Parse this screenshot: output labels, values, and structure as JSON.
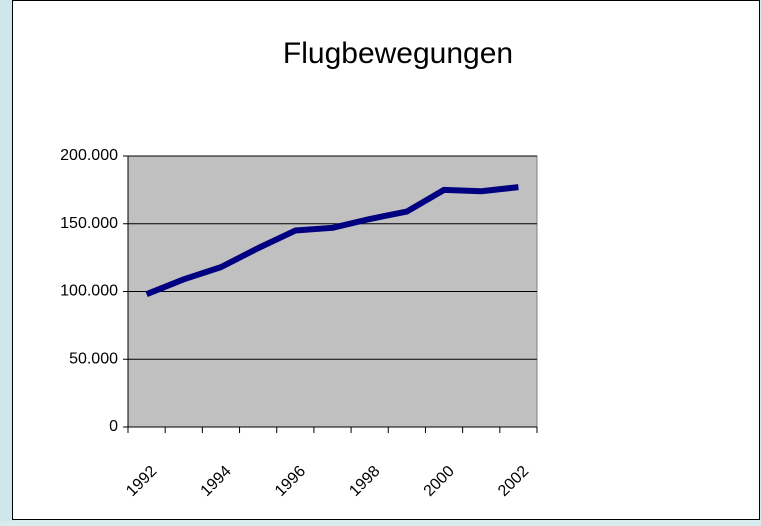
{
  "chart_data": {
    "type": "line",
    "title": "Flugbewegungen",
    "categories": [
      "1992",
      null,
      "1994",
      null,
      "1996",
      null,
      "1998",
      null,
      "2000",
      null,
      "2002"
    ],
    "series": [
      {
        "name": "Flugbewegungen",
        "color": "#000080",
        "values": [
          98000,
          109000,
          118000,
          132000,
          145000,
          147000,
          153500,
          159000,
          175000,
          174000,
          177000
        ]
      }
    ],
    "ylim": [
      0,
      200000
    ],
    "yticks": [
      0,
      {
        "value": 50000,
        "label": "50.000"
      },
      {
        "value": 100000,
        "label": "100.000"
      },
      {
        "value": 150000,
        "label": "150.000"
      },
      {
        "value": 200000,
        "label": "200.000"
      }
    ],
    "grid": true,
    "plot_background": "#c0c0c0"
  }
}
